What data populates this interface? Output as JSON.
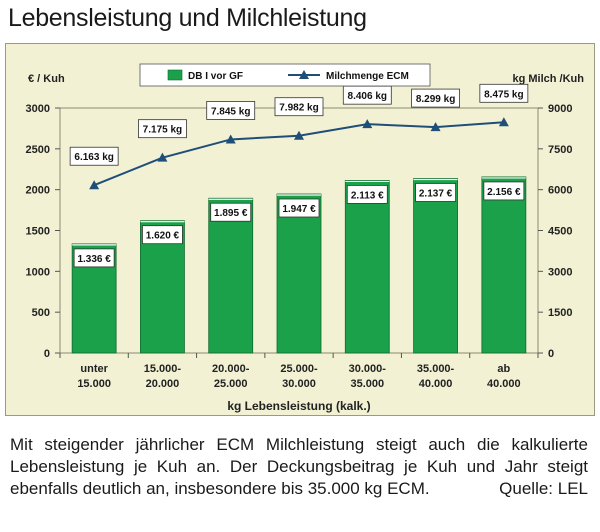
{
  "title": "Lebensleistung und Milchleistung",
  "caption": "Mit steigender jährlicher ECM Milchleistung steigt auch die kalkulierte Lebensleistung je Kuh an. Der Deckungsbeitrag je Kuh und Jahr steigt ebenfalls deutlich an, insbesondere bis 35.000 kg ECM.",
  "source": "Quelle: LEL",
  "chart_data": {
    "type": "bar",
    "title": "",
    "xlabel": "kg Lebensleistung (kalk.)",
    "ylabel": "€ / Kuh",
    "y2label": "kg Milch /Kuh",
    "categories": [
      [
        "unter",
        "15.000"
      ],
      [
        "15.000-",
        "20.000"
      ],
      [
        "20.000-",
        "25.000"
      ],
      [
        "25.000-",
        "30.000"
      ],
      [
        "30.000-",
        "35.000"
      ],
      [
        "35.000-",
        "40.000"
      ],
      [
        "ab",
        "40.000"
      ]
    ],
    "ylim": [
      0,
      3000
    ],
    "yticks": [
      0,
      500,
      1000,
      1500,
      2000,
      2500,
      3000
    ],
    "y2lim": [
      0,
      9000
    ],
    "y2ticks": [
      0,
      1500,
      3000,
      4500,
      6000,
      7500,
      9000
    ],
    "grid": false,
    "legend_position": "top",
    "series": [
      {
        "name": "DB I vor GF",
        "kind": "bar",
        "axis": "left",
        "color": "#1aa14a",
        "values": [
          1336,
          1620,
          1895,
          1947,
          2113,
          2137,
          2156
        ],
        "labels": [
          "1.336 €",
          "1.620 €",
          "1.895 €",
          "1.947 €",
          "2.113 €",
          "2.137 €",
          "2.156 €"
        ]
      },
      {
        "name": "Milchmenge ECM",
        "kind": "line",
        "axis": "right",
        "color": "#1f4e79",
        "values": [
          6163,
          7175,
          7845,
          7982,
          8406,
          8299,
          8475
        ],
        "labels": [
          "6.163 kg",
          "7.175 kg",
          "7.845 kg",
          "7.982 kg",
          "8.406 kg",
          "8.299 kg",
          "8.475 kg"
        ]
      }
    ]
  }
}
